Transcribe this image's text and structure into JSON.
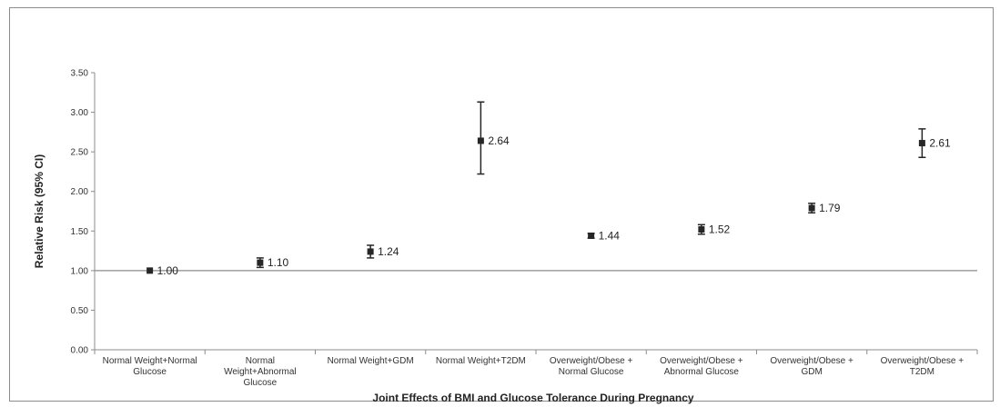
{
  "chart_data": {
    "type": "scatter",
    "xlabel": "Joint Effects of BMI and Glucose Tolerance During Pregnancy",
    "ylabel": "Relative Risk (95% CI)",
    "ylim": [
      0,
      3.5
    ],
    "ytick_step": 0.5,
    "yticks": [
      "0.00",
      "0.50",
      "1.00",
      "1.50",
      "2.00",
      "2.50",
      "3.00",
      "3.50"
    ],
    "reference_line": 1.0,
    "grid": false,
    "legend": "none",
    "marker_color": "#262626",
    "categories": [
      [
        "Normal Weight+Normal",
        "Glucose"
      ],
      [
        "Normal",
        "Weight+Abnormal",
        "Glucose"
      ],
      [
        "Normal Weight+GDM"
      ],
      [
        "Normal Weight+T2DM"
      ],
      [
        "Overweight/Obese +",
        "Normal Glucose"
      ],
      [
        "Overweight/Obese +",
        "Abnormal Glucose"
      ],
      [
        "Overweight/Obese +",
        "GDM"
      ],
      [
        "Overweight/Obese +",
        "T2DM"
      ]
    ],
    "values": [
      1.0,
      1.1,
      1.24,
      2.64,
      1.44,
      1.52,
      1.79,
      2.61
    ],
    "value_labels": [
      "1.00",
      "1.10",
      "1.24",
      "2.64",
      "1.44",
      "1.52",
      "1.79",
      "2.61"
    ],
    "ci_lower": [
      1.0,
      1.04,
      1.16,
      2.22,
      1.41,
      1.46,
      1.73,
      2.43
    ],
    "ci_upper": [
      1.0,
      1.16,
      1.32,
      3.13,
      1.47,
      1.58,
      1.85,
      2.79
    ]
  }
}
